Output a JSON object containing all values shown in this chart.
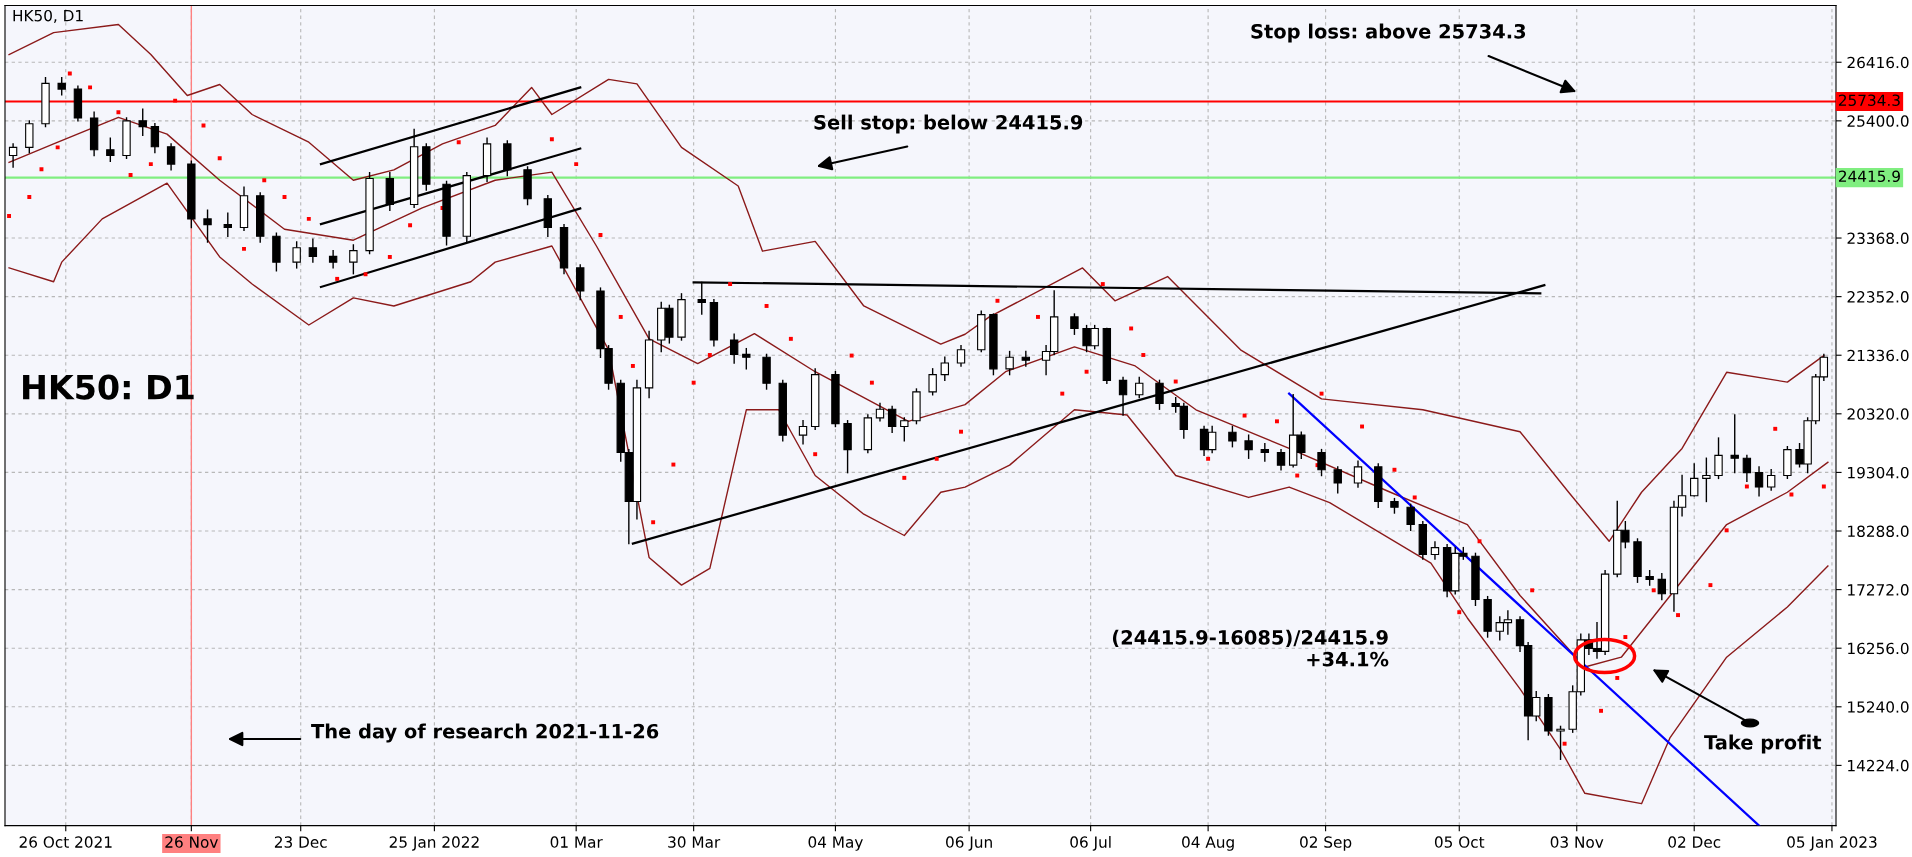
{
  "chart_data": {
    "type": "candlestick",
    "annotations": [
      "HK50, D1",
      "HK50: D1",
      "Stop loss: above 25734.3",
      "Sell stop: below 24415.9",
      "The day of research 2021-11-26",
      "(24415.9-16085)/24415.9\n+34.1%",
      "Take profit"
    ],
    "xlim": [
      "2021-10-11",
      "2023-01-06"
    ],
    "xticks": [
      {
        "value": "2021-10-26",
        "label": "26 Oct 2021"
      },
      {
        "value": "2021-11-26",
        "label": "26 Nov"
      },
      {
        "value": "2021-12-23",
        "label": "23 Dec"
      },
      {
        "value": "2022-01-25",
        "label": "25 Jan 2022"
      },
      {
        "value": "2022-03-01",
        "label": "01 Mar"
      },
      {
        "value": "2022-03-30",
        "label": "30 Mar"
      },
      {
        "value": "2022-05-04",
        "label": "04 May"
      },
      {
        "value": "2022-06-06",
        "label": "06 Jun"
      },
      {
        "value": "2022-07-06",
        "label": "06 Jul"
      },
      {
        "value": "2022-08-04",
        "label": "04 Aug"
      },
      {
        "value": "2022-09-02",
        "label": "02 Sep"
      },
      {
        "value": "2022-10-05",
        "label": "05 Oct"
      },
      {
        "value": "2022-11-03",
        "label": "03 Nov"
      },
      {
        "value": "2022-12-02",
        "label": "02 Dec"
      },
      {
        "value": "2023-01-05",
        "label": "05 Jan 2023"
      }
    ],
    "ylim": [
      13180,
      27400
    ],
    "yticks": [
      {
        "value": 14224,
        "label": "14224.0"
      },
      {
        "value": 15240,
        "label": "15240.0"
      },
      {
        "value": 16256,
        "label": "16256.0"
      },
      {
        "value": 17272,
        "label": "17272.0"
      },
      {
        "value": 18288,
        "label": "18288.0"
      },
      {
        "value": 19304,
        "label": "19304.0"
      },
      {
        "value": 20320,
        "label": "20320.0"
      },
      {
        "value": 21336,
        "label": "21336.0"
      },
      {
        "value": 22352,
        "label": "22352.0"
      },
      {
        "value": 23368,
        "label": "23368.0"
      },
      {
        "value": 25400,
        "label": "25400.0"
      },
      {
        "value": 26416,
        "label": "26416.0"
      }
    ],
    "grid": true,
    "ref_lines": [
      {
        "axis": "y",
        "value": 25734.3,
        "label": "25734.3",
        "color": "#ff0000"
      },
      {
        "axis": "y",
        "value": 24415.9,
        "label": "24415.9",
        "color": "#80ee80"
      },
      {
        "axis": "x",
        "value": "2021-11-26",
        "color": "#ff8080"
      }
    ],
    "series": [
      {
        "type": "line",
        "color": "#8b1a1a",
        "x": [
          "2021-10-12",
          "2021-10-23",
          "2021-11-08",
          "2021-11-16",
          "2021-11-25",
          "2021-12-03",
          "2021-12-11",
          "2021-12-25",
          "2022-01-05",
          "2022-01-15",
          "2022-01-27",
          "2022-02-09",
          "2022-02-18",
          "2022-02-23",
          "2022-03-09",
          "2022-03-16",
          "2022-03-27",
          "2022-04-10",
          "2022-04-16",
          "2022-04-29",
          "2022-05-11",
          "2022-05-30",
          "2022-06-05",
          "2022-06-11",
          "2022-07-04",
          "2022-07-12",
          "2022-07-25",
          "2022-08-12",
          "2022-09-01",
          "2022-09-26",
          "2022-10-20",
          "2022-11-01",
          "2022-11-11",
          "2022-11-19",
          "2022-11-29",
          "2022-12-10",
          "2022-12-25",
          "2023-01-03"
        ],
        "values": [
          26550,
          26930,
          27070,
          26550,
          25840,
          26030,
          25510,
          25030,
          24370,
          24550,
          25000,
          25320,
          25980,
          25510,
          26120,
          26040,
          24940,
          24270,
          23140,
          23310,
          22190,
          21530,
          21700,
          22000,
          22850,
          22280,
          22700,
          21430,
          20580,
          20390,
          20010,
          18960,
          18110,
          18960,
          19720,
          21040,
          20870,
          21330
        ]
      },
      {
        "type": "line",
        "color": "#8b1a1a",
        "x": [
          "2021-10-12",
          "2021-10-23",
          "2021-11-08",
          "2021-11-20",
          "2021-12-03",
          "2021-12-19",
          "2022-01-05",
          "2022-01-22",
          "2022-02-09",
          "2022-02-23",
          "2022-03-06",
          "2022-03-19",
          "2022-03-31",
          "2022-04-14",
          "2022-04-29",
          "2022-05-22",
          "2022-06-05",
          "2022-06-15",
          "2022-07-02",
          "2022-07-17",
          "2022-08-01",
          "2022-08-14",
          "2022-08-24",
          "2022-09-18",
          "2022-10-07",
          "2022-10-20",
          "2022-11-05",
          "2022-11-14",
          "2022-12-10",
          "2022-12-25",
          "2023-01-04"
        ],
        "values": [
          24680,
          25000,
          25460,
          25170,
          24370,
          23520,
          23330,
          23890,
          24370,
          24510,
          23230,
          21620,
          21190,
          21710,
          21050,
          20190,
          20480,
          21050,
          21480,
          21150,
          20390,
          20010,
          19720,
          18960,
          18400,
          17170,
          15930,
          16100,
          18400,
          18960,
          19480
        ]
      },
      {
        "type": "line",
        "color": "#8b1a1a",
        "x": [
          "2021-10-12",
          "2021-10-23",
          "2021-10-25",
          "2021-11-04",
          "2021-11-20",
          "2021-12-03",
          "2021-12-11",
          "2021-12-25",
          "2022-01-05",
          "2022-01-15",
          "2022-02-03",
          "2022-02-09",
          "2022-02-23",
          "2022-03-09",
          "2022-03-19",
          "2022-03-27",
          "2022-04-03",
          "2022-04-12",
          "2022-04-20",
          "2022-04-29",
          "2022-05-11",
          "2022-05-21",
          "2022-05-30",
          "2022-06-05",
          "2022-06-16",
          "2022-07-02",
          "2022-07-15",
          "2022-07-27",
          "2022-08-14",
          "2022-08-24",
          "2022-09-03",
          "2022-09-28",
          "2022-10-07",
          "2022-10-20",
          "2022-10-30",
          "2022-11-05",
          "2022-11-19",
          "2022-11-26",
          "2022-12-10",
          "2022-12-25",
          "2023-01-04"
        ],
        "values": [
          22850,
          22610,
          22950,
          23700,
          24320,
          23040,
          22570,
          21860,
          22330,
          22190,
          22610,
          22950,
          23230,
          21430,
          17830,
          17350,
          17640,
          20390,
          20390,
          19250,
          18580,
          18210,
          18960,
          19050,
          19430,
          20390,
          20300,
          19250,
          18870,
          19050,
          18780,
          17730,
          16780,
          15550,
          14500,
          13740,
          13560,
          14700,
          16100,
          16970,
          17680
        ]
      },
      {
        "type": "scatter",
        "marker": "square",
        "color": "#ff0000",
        "x": [
          "2021-10-12",
          "2021-10-17",
          "2021-10-20",
          "2021-10-24",
          "2021-10-27",
          "2021-11-01",
          "2021-11-08",
          "2021-11-11",
          "2021-11-16",
          "2021-11-22",
          "2021-11-29",
          "2021-12-03",
          "2021-12-09",
          "2021-12-14",
          "2021-12-19",
          "2021-12-25",
          "2022-01-01",
          "2022-01-08",
          "2022-01-14",
          "2022-01-19",
          "2022-01-27",
          "2022-01-31",
          "2022-02-23",
          "2022-03-01",
          "2022-03-07",
          "2022-03-12",
          "2022-03-15",
          "2022-03-20",
          "2022-03-25",
          "2022-03-30",
          "2022-04-03",
          "2022-04-08",
          "2022-04-17",
          "2022-04-23",
          "2022-04-29",
          "2022-05-08",
          "2022-05-13",
          "2022-05-21",
          "2022-05-29",
          "2022-06-04",
          "2022-06-13",
          "2022-06-23",
          "2022-06-29",
          "2022-07-05",
          "2022-07-09",
          "2022-07-16",
          "2022-07-19",
          "2022-07-27",
          "2022-08-04",
          "2022-08-13",
          "2022-08-21",
          "2022-08-26",
          "2022-08-31",
          "2022-09-01",
          "2022-09-11",
          "2022-09-19",
          "2022-09-24",
          "2022-10-05",
          "2022-10-10",
          "2022-10-23",
          "2022-10-31",
          "2022-11-09",
          "2022-11-13",
          "2022-11-15",
          "2022-11-22",
          "2022-11-28",
          "2022-12-06",
          "2022-12-10",
          "2022-12-15",
          "2022-12-22",
          "2022-12-26",
          "2023-01-03"
        ],
        "values": [
          23750,
          24080,
          24560,
          24940,
          26220,
          25980,
          25550,
          24460,
          24650,
          25750,
          25320,
          24750,
          23180,
          24370,
          24080,
          23700,
          22660,
          22740,
          23040,
          23590,
          23890,
          25030,
          25080,
          24650,
          23420,
          22000,
          21150,
          18440,
          19440,
          20860,
          21340,
          22570,
          22190,
          21620,
          19620,
          21330,
          20860,
          19210,
          19540,
          20010,
          22280,
          22000,
          20670,
          21050,
          22570,
          21800,
          21340,
          20880,
          19540,
          20290,
          20190,
          19250,
          19430,
          20670,
          20100,
          19350,
          18870,
          16880,
          18110,
          17260,
          14600,
          15170,
          15740,
          16450,
          17260,
          16830,
          17350,
          18300,
          19060,
          20060,
          18920,
          19060
        ]
      },
      {
        "type": "line",
        "color": "#000000",
        "x": [
          "2021-12-28",
          "2022-03-02"
        ],
        "values": [
          24650,
          25980
        ]
      },
      {
        "type": "line",
        "color": "#000000",
        "x": [
          "2021-12-28",
          "2022-03-02"
        ],
        "values": [
          23610,
          24920
        ]
      },
      {
        "type": "line",
        "color": "#000000",
        "x": [
          "2021-12-28",
          "2022-03-02"
        ],
        "values": [
          22520,
          23880
        ]
      },
      {
        "type": "line",
        "color": "#000000",
        "x": [
          "2022-03-30",
          "2022-10-25"
        ],
        "values": [
          22600,
          22410
        ]
      },
      {
        "type": "line",
        "color": "#000000",
        "x": [
          "2022-03-15",
          "2022-10-26"
        ],
        "values": [
          18070,
          22550
        ]
      },
      {
        "type": "line",
        "color": "#0000ff",
        "x": [
          "2022-08-24",
          "2022-12-18"
        ],
        "values": [
          20670,
          13180
        ]
      },
      {
        "color": "#000000",
        "x": [
          "2021-10-13",
          "2021-10-17",
          "2021-10-21",
          "2021-10-25",
          "2021-10-29",
          "2021-11-02",
          "2021-11-06",
          "2021-11-10",
          "2021-11-14",
          "2021-11-17",
          "2021-11-21",
          "2021-11-26",
          "2021-11-30",
          "2021-12-05",
          "2021-12-09",
          "2021-12-13",
          "2021-12-17",
          "2021-12-22",
          "2021-12-26",
          "2021-12-31",
          "2022-01-05",
          "2022-01-09",
          "2022-01-14",
          "2022-01-20",
          "2022-01-23",
          "2022-01-28",
          "2022-02-02",
          "2022-02-07",
          "2022-02-12",
          "2022-02-17",
          "2022-02-22",
          "2022-02-26",
          "2022-03-02",
          "2022-03-07",
          "2022-03-09",
          "2022-03-12",
          "2022-03-14",
          "2022-03-16",
          "2022-03-19",
          "2022-03-22",
          "2022-03-24",
          "2022-03-27",
          "2022-04-01",
          "2022-04-04",
          "2022-04-09",
          "2022-04-12",
          "2022-04-17",
          "2022-04-21",
          "2022-04-26",
          "2022-04-29",
          "2022-05-04",
          "2022-05-07",
          "2022-05-12",
          "2022-05-15",
          "2022-05-18",
          "2022-05-21",
          "2022-05-24",
          "2022-05-28",
          "2022-05-31",
          "2022-06-04",
          "2022-06-09",
          "2022-06-12",
          "2022-06-16",
          "2022-06-20",
          "2022-06-25",
          "2022-06-27",
          "2022-07-02",
          "2022-07-05",
          "2022-07-07",
          "2022-07-10",
          "2022-07-14",
          "2022-07-18",
          "2022-07-23",
          "2022-07-27",
          "2022-07-29",
          "2022-08-03",
          "2022-08-05",
          "2022-08-10",
          "2022-08-14",
          "2022-08-18",
          "2022-08-22",
          "2022-08-25",
          "2022-08-27",
          "2022-09-01",
          "2022-09-05",
          "2022-09-10",
          "2022-09-15",
          "2022-09-19",
          "2022-09-23",
          "2022-09-26",
          "2022-09-29",
          "2022-10-02",
          "2022-10-04",
          "2022-10-06",
          "2022-10-09",
          "2022-10-12",
          "2022-10-15",
          "2022-10-17",
          "2022-10-20",
          "2022-10-22",
          "2022-10-24",
          "2022-10-27",
          "2022-10-30",
          "2022-11-02",
          "2022-11-04",
          "2022-11-06",
          "2022-11-08",
          "2022-11-10",
          "2022-11-13",
          "2022-11-15",
          "2022-11-18",
          "2022-11-21",
          "2022-11-24",
          "2022-11-27",
          "2022-11-29",
          "2022-12-02",
          "2022-12-05",
          "2022-12-08",
          "2022-12-12",
          "2022-12-15",
          "2022-12-18",
          "2022-12-21",
          "2022-12-25",
          "2022-12-28",
          "2022-12-30",
          "2023-01-01",
          "2023-01-03"
        ],
        "ohlc": [
          [
            24800,
            25000,
            24600,
            24940
          ],
          [
            24940,
            25400,
            24850,
            25350
          ],
          [
            25350,
            26150,
            25300,
            26050
          ],
          [
            26050,
            26150,
            25850,
            25950
          ],
          [
            25950,
            26000,
            25400,
            25450
          ],
          [
            25450,
            25550,
            24800,
            24900
          ],
          [
            24900,
            25100,
            24700,
            24800
          ],
          [
            24800,
            25450,
            24750,
            25400
          ],
          [
            25400,
            25600,
            25150,
            25300
          ],
          [
            25300,
            25350,
            24850,
            24950
          ],
          [
            24950,
            25000,
            24550,
            24650
          ],
          [
            24650,
            24700,
            23550,
            23700
          ],
          [
            23700,
            23850,
            23300,
            23600
          ],
          [
            23600,
            23800,
            23400,
            23550
          ],
          [
            23550,
            24250,
            23500,
            24100
          ],
          [
            24100,
            24150,
            23300,
            23400
          ],
          [
            23400,
            23450,
            22800,
            22950
          ],
          [
            22950,
            23300,
            22850,
            23200
          ],
          [
            23200,
            23350,
            22950,
            23050
          ],
          [
            23050,
            23150,
            22850,
            22950
          ],
          [
            22950,
            23250,
            22750,
            23150
          ],
          [
            23150,
            24500,
            23100,
            24400
          ],
          [
            24400,
            24500,
            23850,
            23950
          ],
          [
            23950,
            25250,
            23900,
            24950
          ],
          [
            24950,
            25000,
            24200,
            24300
          ],
          [
            24300,
            24350,
            23250,
            23400
          ],
          [
            23400,
            24500,
            23300,
            24450
          ],
          [
            24450,
            25100,
            24350,
            25000
          ],
          [
            25000,
            25050,
            24450,
            24550
          ],
          [
            24550,
            24600,
            23950,
            24050
          ],
          [
            24050,
            24100,
            23400,
            23550
          ],
          [
            23550,
            23600,
            22750,
            22850
          ],
          [
            22850,
            22900,
            22300,
            22450
          ],
          [
            22450,
            22500,
            21300,
            21450
          ],
          [
            21450,
            21500,
            20750,
            20850
          ],
          [
            20850,
            20900,
            19500,
            19650
          ],
          [
            19650,
            19700,
            18070,
            18800
          ],
          [
            18800,
            20900,
            18500,
            20770
          ],
          [
            20770,
            21750,
            20600,
            21600
          ],
          [
            21600,
            22250,
            21400,
            22150
          ],
          [
            22150,
            22200,
            21550,
            21650
          ],
          [
            21650,
            22400,
            21600,
            22300
          ],
          [
            22300,
            22600,
            22050,
            22250
          ],
          [
            22250,
            22300,
            21500,
            21600
          ],
          [
            21600,
            21700,
            21200,
            21350
          ],
          [
            21350,
            21450,
            21100,
            21300
          ],
          [
            21300,
            21350,
            20750,
            20850
          ],
          [
            20850,
            20900,
            19850,
            19950
          ],
          [
            19950,
            20200,
            19800,
            20100
          ],
          [
            20100,
            21100,
            20050,
            21000
          ],
          [
            21000,
            21050,
            20100,
            20150
          ],
          [
            20150,
            20200,
            19300,
            19700
          ],
          [
            19700,
            20300,
            19650,
            20250
          ],
          [
            20250,
            20500,
            20200,
            20400
          ],
          [
            20400,
            20450,
            20000,
            20100
          ],
          [
            20100,
            20250,
            19850,
            20200
          ],
          [
            20200,
            20750,
            20150,
            20700
          ],
          [
            20700,
            21100,
            20650,
            21000
          ],
          [
            21000,
            21300,
            20900,
            21200
          ],
          [
            21200,
            21500,
            21150,
            21430
          ],
          [
            21430,
            22100,
            21400,
            22040
          ],
          [
            22040,
            22050,
            21000,
            21100
          ],
          [
            21100,
            21400,
            21000,
            21300
          ],
          [
            21300,
            21400,
            21150,
            21250
          ],
          [
            21250,
            21500,
            21000,
            21400
          ],
          [
            21400,
            22450,
            21350,
            22000
          ],
          [
            22000,
            22050,
            21700,
            21800
          ],
          [
            21800,
            21850,
            21400,
            21500
          ],
          [
            21500,
            21850,
            21450,
            21800
          ],
          [
            21800,
            21800,
            20850,
            20900
          ],
          [
            20900,
            20950,
            20300,
            20650
          ],
          [
            20650,
            20950,
            20600,
            20850
          ],
          [
            20850,
            20900,
            20400,
            20500
          ],
          [
            20500,
            20600,
            20350,
            20450
          ],
          [
            20450,
            20500,
            19900,
            20050
          ],
          [
            20050,
            20100,
            19600,
            19700
          ],
          [
            19700,
            20100,
            19650,
            20000
          ],
          [
            20000,
            20100,
            19750,
            19850
          ],
          [
            19850,
            19950,
            19550,
            19700
          ],
          [
            19700,
            19800,
            19500,
            19650
          ],
          [
            19650,
            19700,
            19350,
            19430
          ],
          [
            19430,
            20650,
            19400,
            19950
          ],
          [
            19950,
            20000,
            19550,
            19650
          ],
          [
            19650,
            19700,
            19250,
            19350
          ],
          [
            19350,
            19400,
            18950,
            19120
          ],
          [
            19120,
            19500,
            19050,
            19400
          ],
          [
            19400,
            19450,
            18700,
            18800
          ],
          [
            18800,
            18850,
            18600,
            18700
          ],
          [
            18700,
            18750,
            18300,
            18400
          ],
          [
            18400,
            18450,
            17800,
            17880
          ],
          [
            17880,
            18100,
            17800,
            18000
          ],
          [
            18000,
            18050,
            17150,
            17250
          ],
          [
            17250,
            18000,
            17200,
            17900
          ],
          [
            17900,
            18000,
            17800,
            17850
          ],
          [
            17850,
            17900,
            17000,
            17100
          ],
          [
            17100,
            17150,
            16450,
            16550
          ],
          [
            16550,
            16800,
            16400,
            16700
          ],
          [
            16700,
            16900,
            16500,
            16750
          ],
          [
            16750,
            16800,
            16200,
            16300
          ],
          [
            16300,
            16350,
            14670,
            15080
          ],
          [
            15080,
            15500,
            15000,
            15400
          ],
          [
            15400,
            15450,
            14750,
            14820
          ],
          [
            14820,
            14900,
            14330,
            14850
          ],
          [
            14850,
            15600,
            14800,
            15500
          ],
          [
            15500,
            16500,
            15450,
            16400
          ],
          [
            16400,
            16500,
            16150,
            16250
          ],
          [
            16250,
            16700,
            16085,
            16200
          ],
          [
            16200,
            17600,
            16150,
            17540
          ],
          [
            17540,
            18800,
            17500,
            18300
          ],
          [
            18300,
            18450,
            18000,
            18100
          ],
          [
            18100,
            18150,
            17400,
            17500
          ],
          [
            17500,
            17600,
            17350,
            17450
          ],
          [
            17450,
            17550,
            17100,
            17200
          ],
          [
            17200,
            18800,
            16900,
            18700
          ],
          [
            18700,
            19250,
            18550,
            18900
          ],
          [
            18900,
            19450,
            18900,
            19200
          ],
          [
            19200,
            19550,
            18800,
            19250
          ],
          [
            19250,
            19900,
            19200,
            19600
          ],
          [
            19600,
            20300,
            19300,
            19550
          ],
          [
            19550,
            19600,
            19150,
            19300
          ],
          [
            19300,
            19400,
            18900,
            19050
          ],
          [
            19050,
            19350,
            19000,
            19250
          ],
          [
            19250,
            19750,
            19200,
            19700
          ],
          [
            19700,
            19800,
            19400,
            19450
          ],
          [
            19450,
            20250,
            19300,
            20200
          ],
          [
            20200,
            21000,
            20150,
            20960
          ],
          [
            20960,
            21350,
            20900,
            21300
          ]
        ]
      }
    ]
  }
}
